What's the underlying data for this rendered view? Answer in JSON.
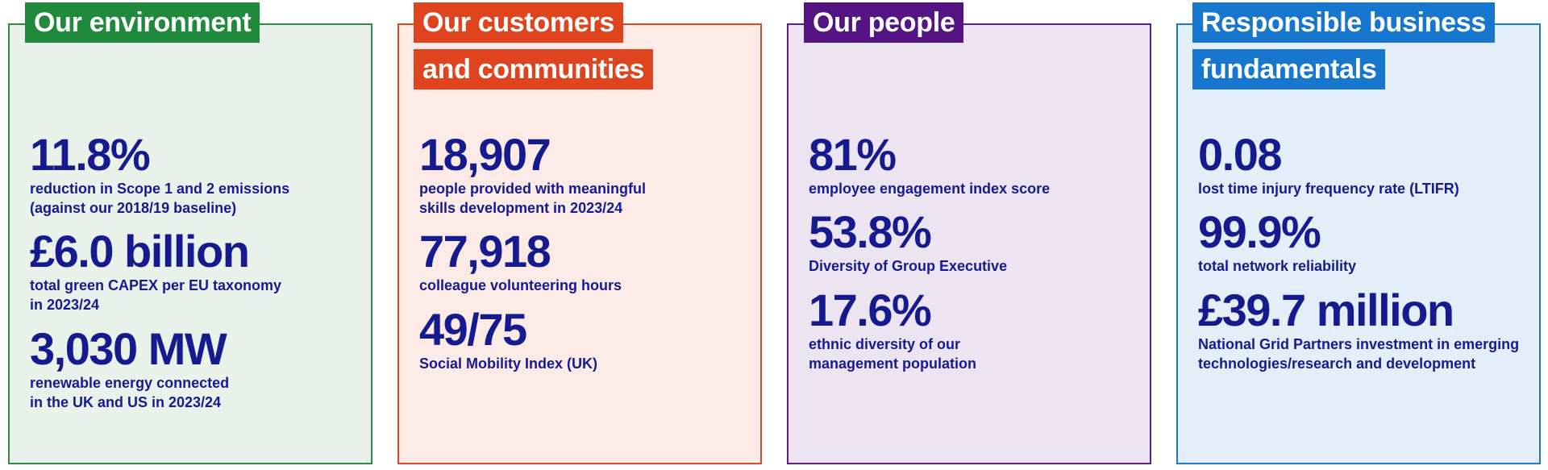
{
  "panels": [
    {
      "title_lines": [
        "Our environment"
      ],
      "metrics": [
        {
          "value": "11.8%",
          "description": "reduction in Scope 1 and 2 emissions\n(against our 2018/19 baseline)"
        },
        {
          "value": "£6.0 billion",
          "description": "total green CAPEX per EU taxonomy\nin 2023/24"
        },
        {
          "value": "3,030 MW",
          "description": "renewable energy connected\nin the UK and US in 2023/24"
        }
      ]
    },
    {
      "title_lines": [
        "Our customers",
        "and communities"
      ],
      "metrics": [
        {
          "value": "18,907",
          "description": "people provided with meaningful\nskills development in 2023/24"
        },
        {
          "value": "77,918",
          "description": "colleague volunteering hours"
        },
        {
          "value": "49/75",
          "description": "Social Mobility Index (UK)"
        }
      ]
    },
    {
      "title_lines": [
        "Our people"
      ],
      "metrics": [
        {
          "value": "81%",
          "description": "employee engagement index score"
        },
        {
          "value": "53.8%",
          "description": "Diversity of Group Executive"
        },
        {
          "value": "17.6%",
          "description": "ethnic diversity of our\nmanagement population"
        }
      ]
    },
    {
      "title_lines": [
        "Responsible business",
        "fundamentals"
      ],
      "metrics": [
        {
          "value": "0.08",
          "description": "lost time injury frequency rate (LTIFR)"
        },
        {
          "value": "99.9%",
          "description": "total network reliability"
        },
        {
          "value": "£39.7 million",
          "description": "National Grid Partners investment in emerging\ntechnologies/research and development"
        }
      ]
    }
  ],
  "colors": {
    "environment": "#1f8a3c",
    "customers": "#e0441f",
    "people": "#551483",
    "responsible": "#1777cf",
    "metric_text": "#151b8f"
  }
}
